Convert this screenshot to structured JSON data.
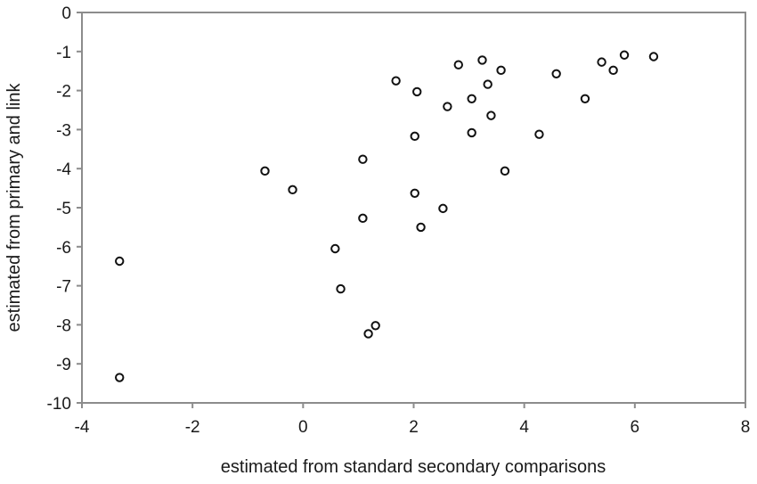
{
  "chart_data": {
    "type": "scatter",
    "title": "",
    "xlabel": "estimated from standard secondary comparisons",
    "ylabel": "estimated from primary and link",
    "xlim": [
      -4,
      8
    ],
    "ylim": [
      -10,
      0
    ],
    "xticks": [
      -4,
      -2,
      0,
      2,
      4,
      6,
      8
    ],
    "yticks": [
      0,
      -1,
      -2,
      -3,
      -4,
      -5,
      -6,
      -7,
      -8,
      -9,
      -10
    ],
    "grid": false,
    "legend": null,
    "marker": "open-circle",
    "series": [
      {
        "name": "points",
        "x": [
          -3.32,
          -3.32,
          -0.69,
          -0.19,
          0.58,
          0.68,
          1.18,
          1.31,
          1.08,
          1.08,
          1.68,
          2.02,
          2.02,
          2.06,
          2.13,
          2.53,
          2.61,
          2.81,
          3.05,
          3.05,
          3.24,
          3.34,
          3.4,
          3.58,
          3.65,
          4.27,
          4.58,
          5.1,
          5.4,
          5.61,
          5.81,
          6.34
        ],
        "y": [
          -6.37,
          -9.35,
          -4.06,
          -4.54,
          -6.05,
          -7.08,
          -8.23,
          -8.02,
          -3.76,
          -5.27,
          -1.75,
          -3.17,
          -4.63,
          -2.03,
          -5.5,
          -5.02,
          -2.41,
          -1.34,
          -2.21,
          -3.08,
          -1.22,
          -1.84,
          -2.64,
          -1.48,
          -4.06,
          -3.12,
          -1.57,
          -2.21,
          -1.27,
          -1.48,
          -1.09,
          -1.13
        ]
      }
    ]
  },
  "colors": {
    "axis": "#8c8c8c",
    "marker_stroke": "#111111",
    "marker_fill": "#ffffff",
    "text": "#1a1a1a"
  }
}
